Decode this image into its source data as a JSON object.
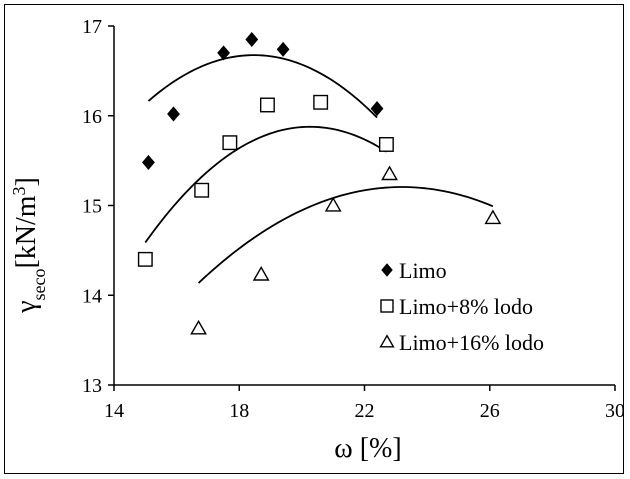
{
  "chart_data": {
    "type": "scatter",
    "xlabel": "ω [%]",
    "ylabel": {
      "main": "γ",
      "sub": "seco",
      "rest": "[kN/m",
      "sup": "3",
      "close": "]"
    },
    "xlim": [
      14,
      30
    ],
    "ylim": [
      13,
      17
    ],
    "xticks": [
      "14",
      "18",
      "22",
      "26",
      "30"
    ],
    "yticks": [
      "13",
      "14",
      "15",
      "16",
      "17"
    ],
    "grid": false,
    "legend_position": "center-right",
    "series": [
      {
        "name": "Limo",
        "marker": "diamond-filled",
        "color": "#000000",
        "x": [
          15.1,
          15.9,
          17.5,
          18.4,
          19.4,
          22.4
        ],
        "y": [
          15.48,
          16.02,
          16.7,
          16.85,
          16.74,
          16.08
        ],
        "trend": {
          "x_from": 15.1,
          "x_to": 22.4,
          "coef": [
            1.31225,
            1.66364,
            -0.0450375
          ]
        }
      },
      {
        "name": "Limo+8% lodo",
        "marker": "square-open",
        "color": "#000000",
        "x": [
          15.0,
          16.8,
          17.7,
          18.9,
          20.6,
          22.7
        ],
        "y": [
          14.4,
          15.17,
          15.7,
          16.12,
          16.15,
          15.68
        ],
        "trend": {
          "x_from": 15.0,
          "x_to": 22.7,
          "coef": [
            -3.25195,
            1.88838,
            -0.0466045
          ]
        }
      },
      {
        "name": "Limo+16% lodo",
        "marker": "triangle-open",
        "color": "#000000",
        "x": [
          16.7,
          18.7,
          21.0,
          22.8,
          26.1
        ],
        "y": [
          13.63,
          14.23,
          15.0,
          15.35,
          14.86
        ],
        "trend": {
          "x_from": 16.7,
          "x_to": 26.1,
          "coef": [
            1.55245,
            1.17741,
            -0.0253835
          ]
        }
      }
    ]
  }
}
